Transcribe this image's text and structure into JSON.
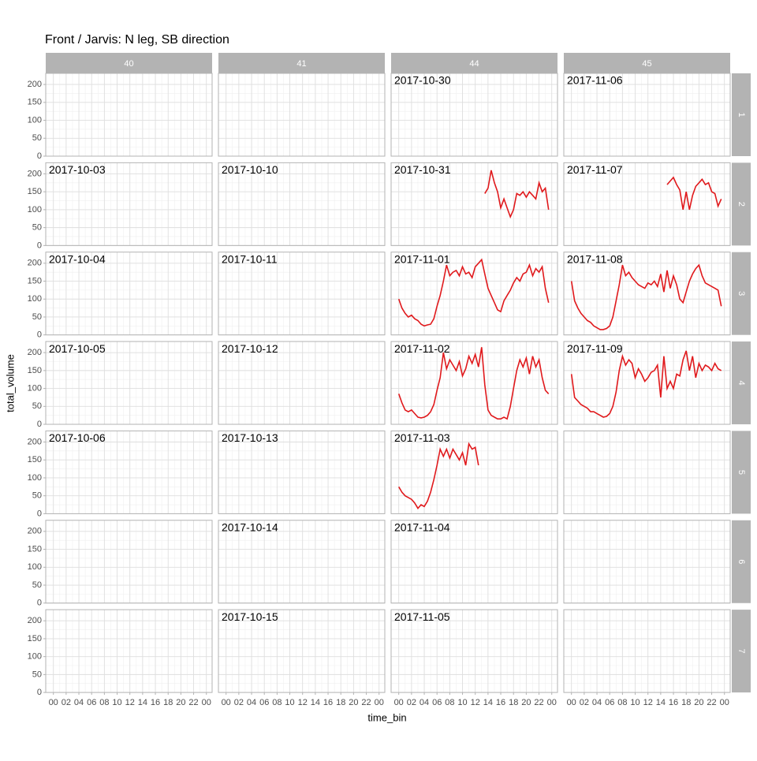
{
  "chart_data": {
    "type": "line",
    "title": "Front / Jarvis: N leg, SB direction",
    "x_label": "time_bin",
    "y_label": "total_volume",
    "columns": [
      "40",
      "41",
      "44",
      "45"
    ],
    "rows": [
      "1",
      "2",
      "3",
      "4",
      "5",
      "6",
      "7"
    ],
    "color": "#e0191c",
    "grid": true,
    "xlim": [
      -1.2,
      24.9
    ],
    "xticks": [
      {
        "value": 0,
        "label": "00"
      },
      {
        "value": 2,
        "label": "02"
      },
      {
        "value": 4,
        "label": "04"
      },
      {
        "value": 6,
        "label": "06"
      },
      {
        "value": 8,
        "label": "08"
      },
      10,
      12,
      14,
      16,
      18,
      20,
      22,
      {
        "value": 24,
        "label": "00"
      }
    ],
    "ylim": [
      0,
      231
    ],
    "yticks": [
      0,
      50,
      100,
      150,
      200
    ],
    "panels": [
      [
        null,
        null,
        {
          "date": "2017-10-30"
        },
        {
          "date": "2017-11-06"
        }
      ],
      [
        {
          "date": "2017-10-03"
        },
        {
          "date": "2017-10-10"
        },
        {
          "date": "2017-10-31",
          "x": [
            13.5,
            14,
            14.5,
            15,
            15.5,
            16,
            16.5,
            17,
            17.5,
            18,
            18.5,
            19,
            19.5,
            20,
            20.5,
            21,
            21.5,
            22,
            22.5,
            23,
            23.5
          ],
          "values": [
            145,
            160,
            210,
            175,
            150,
            105,
            130,
            105,
            80,
            100,
            145,
            140,
            150,
            135,
            150,
            140,
            130,
            175,
            150,
            160,
            100
          ]
        },
        {
          "date": "2017-11-07",
          "x": [
            15,
            15.5,
            16,
            16.5,
            17,
            17.5,
            18,
            18.5,
            19,
            19.5,
            20,
            20.5,
            21,
            21.5,
            22,
            22.5,
            23,
            23.5
          ],
          "values": [
            170,
            180,
            190,
            170,
            155,
            100,
            150,
            100,
            140,
            165,
            175,
            185,
            170,
            175,
            150,
            145,
            110,
            130
          ]
        }
      ],
      [
        {
          "date": "2017-10-04"
        },
        {
          "date": "2017-10-11"
        },
        {
          "date": "2017-11-01",
          "x": [
            0,
            0.5,
            1,
            1.5,
            2,
            2.5,
            3,
            3.5,
            4,
            4.5,
            5,
            5.5,
            6,
            6.5,
            7,
            7.5,
            8,
            8.5,
            9,
            9.5,
            10,
            10.5,
            11,
            11.5,
            12,
            12.5,
            13,
            13.5,
            14,
            14.5,
            15,
            15.5,
            16,
            16.5,
            17,
            17.5,
            18,
            18.5,
            19,
            19.5,
            20,
            20.5,
            21,
            21.5,
            22,
            22.5,
            23,
            23.5
          ],
          "values": [
            100,
            75,
            60,
            50,
            55,
            45,
            40,
            30,
            25,
            28,
            30,
            45,
            80,
            110,
            150,
            195,
            165,
            175,
            180,
            165,
            190,
            170,
            175,
            160,
            190,
            200,
            210,
            170,
            130,
            110,
            90,
            70,
            65,
            95,
            110,
            125,
            145,
            160,
            150,
            170,
            175,
            195,
            165,
            185,
            175,
            190,
            130,
            90
          ]
        },
        {
          "date": "2017-11-08",
          "x": [
            0,
            0.5,
            1,
            1.5,
            2,
            2.5,
            3,
            3.5,
            4,
            4.5,
            5,
            5.5,
            6,
            6.5,
            7,
            7.5,
            8,
            8.5,
            9,
            9.5,
            10,
            10.5,
            11,
            11.5,
            12,
            12.5,
            13,
            13.5,
            14,
            14.5,
            15,
            15.5,
            16,
            16.5,
            17,
            17.5,
            18,
            18.5,
            19,
            19.5,
            20,
            20.5,
            21,
            21.5,
            22,
            22.5,
            23,
            23.5
          ],
          "values": [
            150,
            95,
            75,
            60,
            50,
            40,
            35,
            25,
            20,
            15,
            15,
            18,
            25,
            50,
            95,
            140,
            195,
            165,
            175,
            160,
            150,
            140,
            135,
            130,
            145,
            140,
            150,
            135,
            170,
            120,
            180,
            130,
            165,
            140,
            100,
            90,
            120,
            150,
            170,
            185,
            195,
            165,
            145,
            140,
            135,
            130,
            125,
            80
          ]
        }
      ],
      [
        {
          "date": "2017-10-05"
        },
        {
          "date": "2017-10-12"
        },
        {
          "date": "2017-11-02",
          "x": [
            0,
            0.5,
            1,
            1.5,
            2,
            2.5,
            3,
            3.5,
            4,
            4.5,
            5,
            5.5,
            6,
            6.5,
            7,
            7.5,
            8,
            8.5,
            9,
            9.5,
            10,
            10.5,
            11,
            11.5,
            12,
            12.5,
            13,
            13.5,
            14,
            14.5,
            15,
            15.5,
            16,
            16.5,
            17,
            17.5,
            18,
            18.5,
            19,
            19.5,
            20,
            20.5,
            21,
            21.5,
            22,
            22.5,
            23,
            23.5
          ],
          "values": [
            85,
            60,
            40,
            35,
            40,
            30,
            20,
            18,
            20,
            25,
            35,
            55,
            95,
            130,
            200,
            155,
            180,
            165,
            150,
            175,
            135,
            155,
            190,
            170,
            195,
            160,
            215,
            110,
            40,
            25,
            20,
            15,
            15,
            20,
            15,
            50,
            100,
            150,
            180,
            160,
            185,
            140,
            190,
            160,
            180,
            130,
            95,
            85
          ]
        },
        {
          "date": "2017-11-09",
          "x": [
            0,
            0.5,
            1,
            1.5,
            2,
            2.5,
            3,
            3.5,
            4,
            4.5,
            5,
            5.5,
            6,
            6.5,
            7,
            7.5,
            8,
            8.5,
            9,
            9.5,
            10,
            10.5,
            11,
            11.5,
            12,
            12.5,
            13,
            13.5,
            14,
            14.5,
            15,
            15.5,
            16,
            16.5,
            17,
            17.5,
            18,
            18.5,
            19,
            19.5,
            20,
            20.5,
            21,
            21.5,
            22,
            22.5,
            23,
            23.5
          ],
          "values": [
            140,
            75,
            65,
            55,
            50,
            45,
            35,
            35,
            30,
            25,
            20,
            22,
            30,
            50,
            90,
            150,
            190,
            165,
            180,
            170,
            130,
            155,
            140,
            120,
            130,
            145,
            150,
            165,
            75,
            190,
            100,
            120,
            100,
            140,
            135,
            180,
            205,
            150,
            190,
            130,
            170,
            150,
            165,
            160,
            150,
            170,
            155,
            150
          ]
        }
      ],
      [
        {
          "date": "2017-10-06"
        },
        {
          "date": "2017-10-13"
        },
        {
          "date": "2017-11-03",
          "x": [
            0,
            0.5,
            1,
            1.5,
            2,
            2.5,
            3,
            3.5,
            4,
            4.5,
            5,
            5.5,
            6,
            6.5,
            7,
            7.5,
            8,
            8.5,
            9,
            9.5,
            10,
            10.5,
            11,
            11.5,
            12,
            12.5
          ],
          "values": [
            75,
            60,
            50,
            45,
            40,
            30,
            15,
            25,
            20,
            35,
            60,
            95,
            135,
            180,
            160,
            180,
            155,
            180,
            165,
            150,
            170,
            135,
            195,
            180,
            185,
            135
          ]
        },
        null
      ],
      [
        null,
        {
          "date": "2017-10-14"
        },
        {
          "date": "2017-11-04"
        },
        null
      ],
      [
        null,
        {
          "date": "2017-10-15"
        },
        {
          "date": "2017-11-05"
        },
        null
      ]
    ]
  }
}
